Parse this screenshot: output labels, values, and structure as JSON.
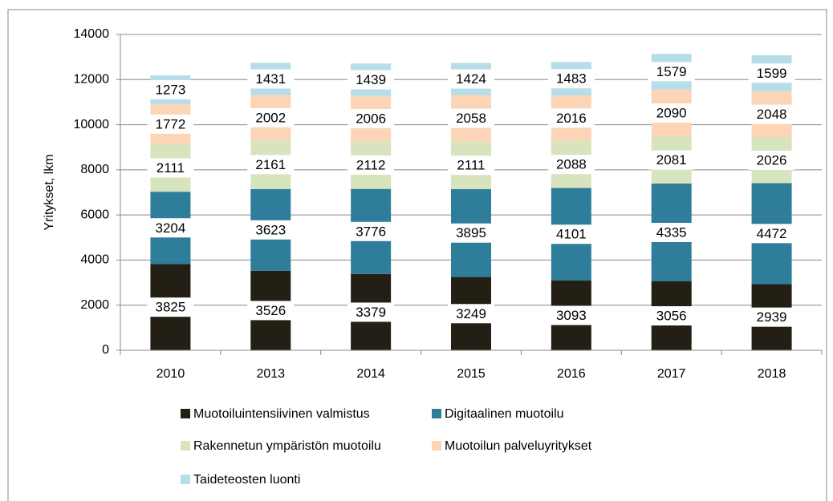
{
  "chart_data": {
    "type": "stacked_bar",
    "y_axis_label": "Yritykset, lkm",
    "categories": [
      "2010",
      "2013",
      "2014",
      "2015",
      "2016",
      "2017",
      "2018"
    ],
    "series": [
      {
        "name": "Muotoiluintensiivinen valmistus",
        "color": "#231f14",
        "values": [
          3825,
          3526,
          3379,
          3249,
          3093,
          3056,
          2939
        ]
      },
      {
        "name": "Digitaalinen muotoilu",
        "color": "#2e7d9a",
        "values": [
          3204,
          3623,
          3776,
          3895,
          4101,
          4335,
          4472
        ]
      },
      {
        "name": "Rakennetun ympäristön muotoilu",
        "color": "#d7e4bd",
        "values": [
          2111,
          2161,
          2112,
          2111,
          2088,
          2081,
          2026
        ]
      },
      {
        "name": "Muotoilun palveluyritykset",
        "color": "#fbd5b5",
        "values": [
          1772,
          2002,
          2006,
          2058,
          2016,
          2090,
          2048
        ]
      },
      {
        "name": "Taideteosten luonti",
        "color": "#b7dee8",
        "values": [
          1273,
          1431,
          1439,
          1424,
          1483,
          1579,
          1599
        ]
      }
    ],
    "ylim": [
      0,
      14000
    ],
    "yticks": [
      0,
      2000,
      4000,
      6000,
      8000,
      10000,
      12000,
      14000
    ],
    "grid": true,
    "legend": "bottom"
  }
}
